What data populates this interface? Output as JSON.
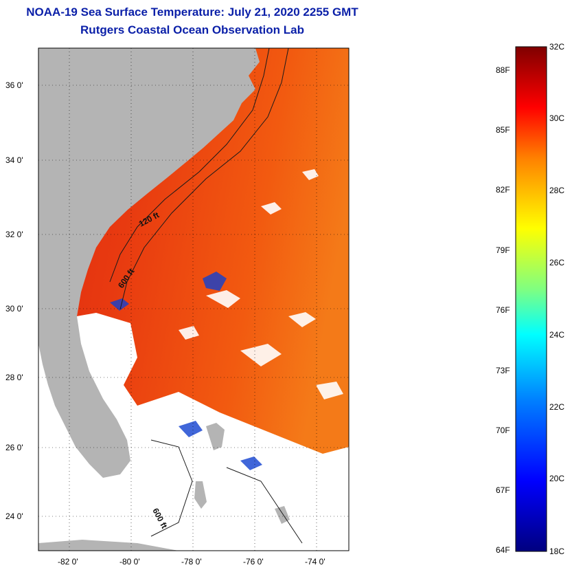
{
  "title": {
    "line1": "NOAA-19 Sea Surface Temperature:  July 21, 2020 2255 GMT",
    "line2": "Rutgers Coastal Ocean Observation Lab"
  },
  "map": {
    "lat_ticks": [
      "36 0'",
      "34 0'",
      "32 0'",
      "30 0'",
      "28 0'",
      "26 0'",
      "24 0'"
    ],
    "lon_ticks": [
      "-82 0'",
      "-80 0'",
      "-78 0'",
      "-76 0'",
      "-74 0'"
    ],
    "contours": [
      {
        "label": "120 ft"
      },
      {
        "label": "600 ft"
      },
      {
        "label": "600 ft"
      }
    ],
    "colors": {
      "land": "#b4b4b4",
      "clouds": "#ffffff",
      "water_warm": "#e8300e",
      "water_offshore": "#f25a10"
    }
  },
  "colorbar": {
    "fahrenheit_labels": [
      "88F",
      "85F",
      "82F",
      "79F",
      "76F",
      "73F",
      "70F",
      "67F",
      "64F"
    ],
    "celsius_labels": [
      "32C",
      "30C",
      "28C",
      "26C",
      "24C",
      "22C",
      "20C",
      "18C"
    ],
    "range_c": [
      18,
      32
    ],
    "colors": [
      "#00007f",
      "#0000ff",
      "#0080ff",
      "#00ffff",
      "#80ff80",
      "#ffff00",
      "#ff8000",
      "#ff0000",
      "#7f0000"
    ]
  }
}
